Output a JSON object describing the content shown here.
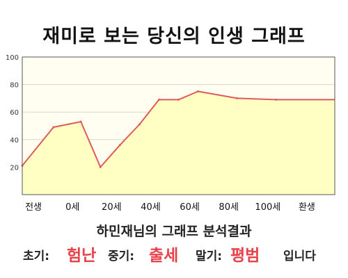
{
  "title": "재미로 보는 당신의 인생 그래프",
  "chart_data": {
    "type": "area",
    "x_categories": [
      "전생",
      "0세",
      "20세",
      "40세",
      "60세",
      "80세",
      "100세",
      "환생"
    ],
    "ylim": [
      0,
      100
    ],
    "yticks": [
      20,
      40,
      60,
      80,
      100
    ],
    "grid": true,
    "fill_color": "#ffffc4",
    "line_color": "#e05a5a",
    "points": [
      {
        "x": -0.5,
        "y": 21
      },
      {
        "x": 0.3,
        "y": 49
      },
      {
        "x": 1.0,
        "y": 53
      },
      {
        "x": 1.5,
        "y": 20
      },
      {
        "x": 2.0,
        "y": 36
      },
      {
        "x": 2.5,
        "y": 51
      },
      {
        "x": 3.0,
        "y": 69
      },
      {
        "x": 3.5,
        "y": 69
      },
      {
        "x": 4.0,
        "y": 75
      },
      {
        "x": 5.0,
        "y": 70
      },
      {
        "x": 6.0,
        "y": 69
      }
    ]
  },
  "summary": {
    "title": "하민재님의 그래프 분석결과",
    "early_label": "초기:",
    "early_value": "험난",
    "middle_label": "중기:",
    "middle_value": "출세",
    "late_label": "말기:",
    "late_value": "평범",
    "ending": "입니다"
  },
  "colors": {
    "accent": "#e8414a"
  }
}
